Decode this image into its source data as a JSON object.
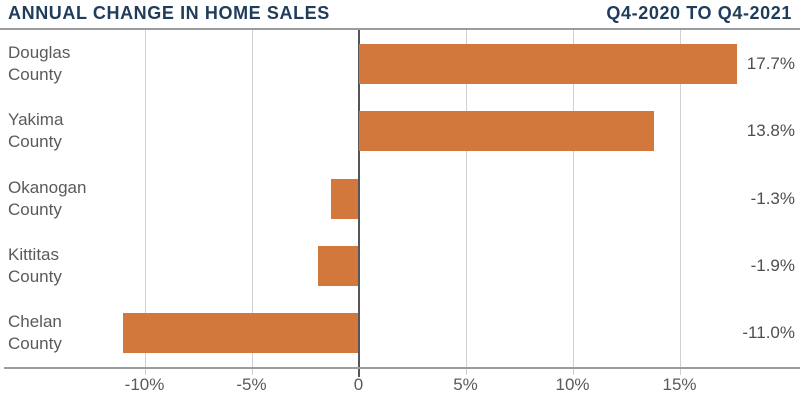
{
  "header": {
    "title": "ANNUAL CHANGE IN HOME SALES",
    "subtitle": "Q4-2020 TO Q4-2021"
  },
  "colors": {
    "bar": "#D2783C",
    "title": "#1F3C5B",
    "label": "#595A5C",
    "value_label": "#4D4E50",
    "gridline": "#CFD0D2",
    "axis": "#9A9C9E",
    "zero_line": "#54565A"
  },
  "chart_data": {
    "type": "bar",
    "orientation": "horizontal",
    "title": "ANNUAL CHANGE IN HOME SALES",
    "subtitle": "Q4-2020 TO Q4-2021",
    "categories": [
      "Douglas County",
      "Yakima County",
      "Okanogan County",
      "Kittitas County",
      "Chelan County"
    ],
    "values": [
      17.7,
      13.8,
      -1.3,
      -1.9,
      -11.0
    ],
    "value_labels": [
      "17.7%",
      "13.8%",
      "-1.3%",
      "-1.9%",
      "-11.0%"
    ],
    "xlabel": "",
    "ylabel": "",
    "xlim": [
      -12.5,
      20.5
    ],
    "x_ticks": [
      -10,
      -5,
      0,
      5,
      10,
      15
    ],
    "x_tick_labels": [
      "-10%",
      "-5%",
      "0",
      "5%",
      "10%",
      "15%"
    ],
    "grid": true,
    "legend": false
  }
}
